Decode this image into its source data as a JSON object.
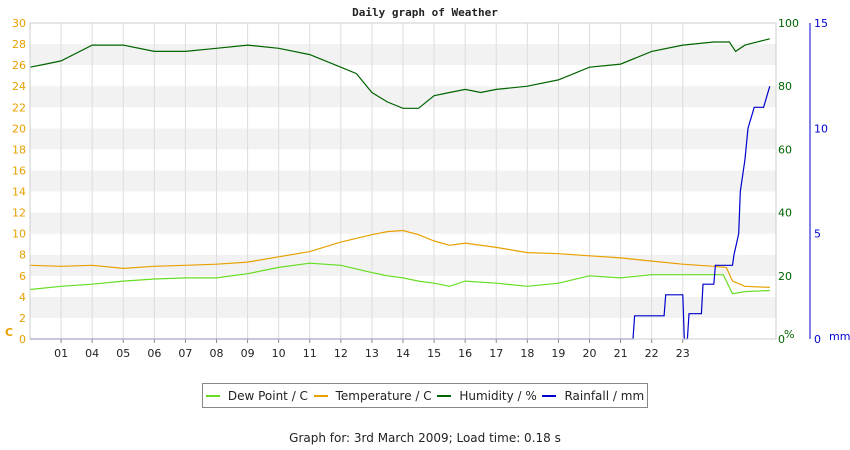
{
  "chart_data": {
    "type": "line",
    "title": "Daily graph of Weather",
    "left_unit_label": "C",
    "right_unit_label_1": "%",
    "right_unit_label_2": "mm",
    "x_ticks": [
      "01",
      "04",
      "05",
      "06",
      "07",
      "08",
      "09",
      "10",
      "11",
      "12",
      "13",
      "14",
      "15",
      "16",
      "17",
      "18",
      "19",
      "20",
      "21",
      "22",
      "23"
    ],
    "y_left": {
      "ticks": [
        0,
        2,
        4,
        6,
        8,
        10,
        12,
        14,
        16,
        18,
        20,
        22,
        24,
        26,
        28,
        30
      ],
      "ylim": [
        0,
        30
      ],
      "color": "#e8a000"
    },
    "y_right1": {
      "ticks": [
        0,
        20,
        40,
        60,
        80,
        100
      ],
      "ylim": [
        0,
        100
      ],
      "color": "#006400"
    },
    "y_right2": {
      "ticks": [
        0,
        5,
        10,
        15
      ],
      "ylim": [
        0,
        15
      ],
      "color": "#0000cc"
    },
    "grid": "alternating horizontal bands",
    "legend_position": "bottom",
    "series": [
      {
        "name": "Dew Point / C",
        "color": "#66dd22",
        "axis": "left",
        "points": [
          [
            0,
            4.7
          ],
          [
            1,
            5.0
          ],
          [
            2,
            5.2
          ],
          [
            3,
            5.5
          ],
          [
            4,
            5.7
          ],
          [
            5,
            5.8
          ],
          [
            6,
            5.8
          ],
          [
            7,
            6.2
          ],
          [
            8,
            6.8
          ],
          [
            9,
            7.2
          ],
          [
            10,
            7.0
          ],
          [
            11,
            6.3
          ],
          [
            11.5,
            6.0
          ],
          [
            12,
            5.8
          ],
          [
            12.5,
            5.5
          ],
          [
            13,
            5.3
          ],
          [
            13.5,
            5.0
          ],
          [
            14,
            5.5
          ],
          [
            15,
            5.3
          ],
          [
            16,
            5.0
          ],
          [
            17,
            5.3
          ],
          [
            18,
            6.0
          ],
          [
            19,
            5.8
          ],
          [
            20,
            6.1
          ],
          [
            21,
            6.1
          ],
          [
            22,
            6.1
          ],
          [
            22.3,
            6.1
          ],
          [
            22.6,
            4.3
          ],
          [
            23,
            4.5
          ],
          [
            23.8,
            4.6
          ]
        ]
      },
      {
        "name": "Temperature / C",
        "color": "#e8a000",
        "axis": "left",
        "points": [
          [
            0,
            7.0
          ],
          [
            1,
            6.9
          ],
          [
            2,
            7.0
          ],
          [
            3,
            6.7
          ],
          [
            4,
            6.9
          ],
          [
            5,
            7.0
          ],
          [
            6,
            7.1
          ],
          [
            7,
            7.3
          ],
          [
            8,
            7.8
          ],
          [
            9,
            8.3
          ],
          [
            10,
            9.2
          ],
          [
            11,
            9.9
          ],
          [
            11.5,
            10.2
          ],
          [
            12,
            10.3
          ],
          [
            12.5,
            9.9
          ],
          [
            13,
            9.3
          ],
          [
            13.5,
            8.9
          ],
          [
            14,
            9.1
          ],
          [
            15,
            8.7
          ],
          [
            16,
            8.2
          ],
          [
            17,
            8.1
          ],
          [
            18,
            7.9
          ],
          [
            19,
            7.7
          ],
          [
            20,
            7.4
          ],
          [
            21,
            7.1
          ],
          [
            22,
            6.9
          ],
          [
            22.4,
            6.8
          ],
          [
            22.6,
            5.5
          ],
          [
            23,
            5.0
          ],
          [
            23.8,
            4.9
          ]
        ]
      },
      {
        "name": "Humidity / %",
        "color": "#006400",
        "axis": "right1",
        "points": [
          [
            0,
            86
          ],
          [
            0.5,
            87
          ],
          [
            1,
            88
          ],
          [
            2,
            93
          ],
          [
            3,
            93
          ],
          [
            4,
            91
          ],
          [
            5,
            91
          ],
          [
            6,
            92
          ],
          [
            7,
            93
          ],
          [
            8,
            92
          ],
          [
            9,
            90
          ],
          [
            10,
            86
          ],
          [
            10.5,
            84
          ],
          [
            11,
            78
          ],
          [
            11.5,
            75
          ],
          [
            12,
            73
          ],
          [
            12.5,
            73
          ],
          [
            13,
            77
          ],
          [
            13.5,
            78
          ],
          [
            14,
            79
          ],
          [
            14.5,
            78
          ],
          [
            15,
            79
          ],
          [
            16,
            80
          ],
          [
            17,
            82
          ],
          [
            18,
            86
          ],
          [
            19,
            87
          ],
          [
            20,
            91
          ],
          [
            21,
            93
          ],
          [
            22,
            94
          ],
          [
            22.5,
            94
          ],
          [
            22.7,
            91
          ],
          [
            23,
            93
          ],
          [
            23.8,
            95
          ]
        ]
      },
      {
        "name": "Rainfall / mm",
        "color": "#0000cc",
        "axis": "right2",
        "points": [
          [
            0,
            0
          ],
          [
            19.4,
            0
          ],
          [
            19.45,
            1.1
          ],
          [
            20.4,
            1.1
          ],
          [
            20.45,
            2.1
          ],
          [
            21.0,
            2.1
          ],
          [
            21.05,
            0
          ],
          [
            21.15,
            0
          ],
          [
            21.2,
            1.2
          ],
          [
            21.6,
            1.2
          ],
          [
            21.65,
            2.6
          ],
          [
            22.0,
            2.6
          ],
          [
            22.05,
            3.5
          ],
          [
            22.6,
            3.5
          ],
          [
            22.65,
            4.0
          ],
          [
            22.8,
            5.0
          ],
          [
            22.85,
            7.0
          ],
          [
            23.0,
            8.5
          ],
          [
            23.1,
            10.0
          ],
          [
            23.3,
            11.0
          ],
          [
            23.6,
            11.0
          ],
          [
            23.8,
            12.0
          ]
        ]
      }
    ]
  },
  "footer": "Graph for: 3rd March 2009; Load time: 0.18 s"
}
